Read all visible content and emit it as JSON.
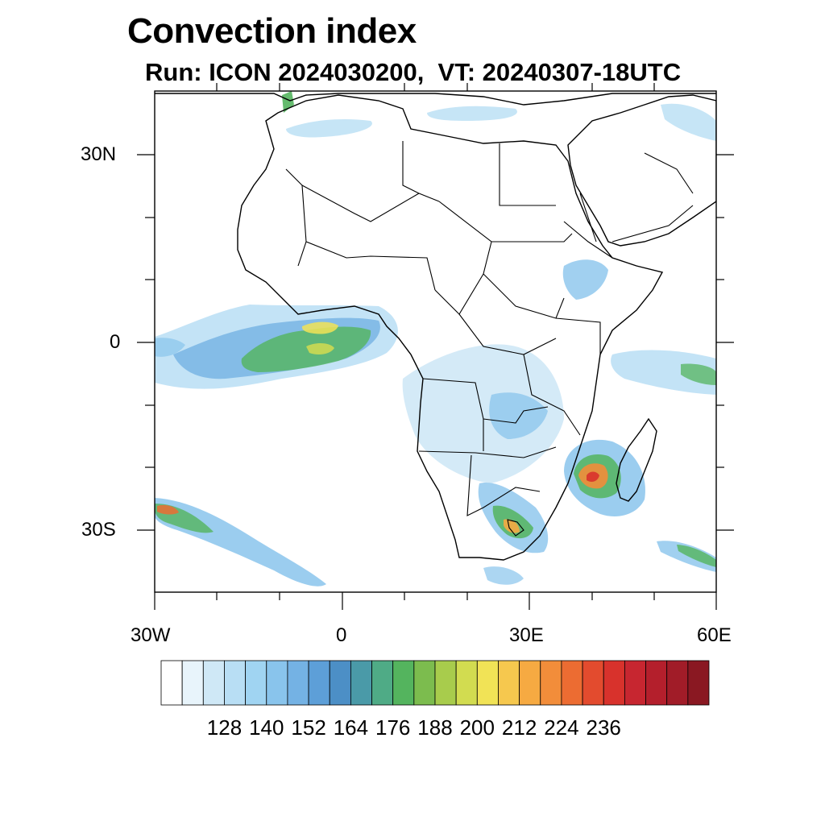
{
  "title": "Convection index",
  "subtitle": "Run: ICON 2024030200,  VT: 20240307-18UTC",
  "axes": {
    "lon_labels": [
      "30W",
      "0",
      "30E",
      "60E"
    ],
    "lat_labels": [
      "30N",
      "0",
      "30S"
    ]
  },
  "colorbar": {
    "levels": 26,
    "labels": [
      "128",
      "140",
      "152",
      "164",
      "176",
      "188",
      "200",
      "212",
      "224",
      "236"
    ],
    "colors": [
      "#ffffff",
      "#e8f4fb",
      "#cfe8f6",
      "#b8def4",
      "#a0d4f2",
      "#89c4ec",
      "#74b2e4",
      "#5d9fd8",
      "#4c8fc6",
      "#4a9aa8",
      "#4fab86",
      "#54b45e",
      "#7cbc4e",
      "#a8cc4c",
      "#d2dc50",
      "#f1e356",
      "#f6c84e",
      "#f6aa42",
      "#f28d3a",
      "#ec6c32",
      "#e34b2e",
      "#d8322c",
      "#c72630",
      "#b41f2c",
      "#a11c28",
      "#8a1822"
    ]
  },
  "map": {
    "region": "Africa",
    "lon_range": [
      -30,
      60
    ],
    "lat_range": [
      -40,
      40
    ]
  }
}
